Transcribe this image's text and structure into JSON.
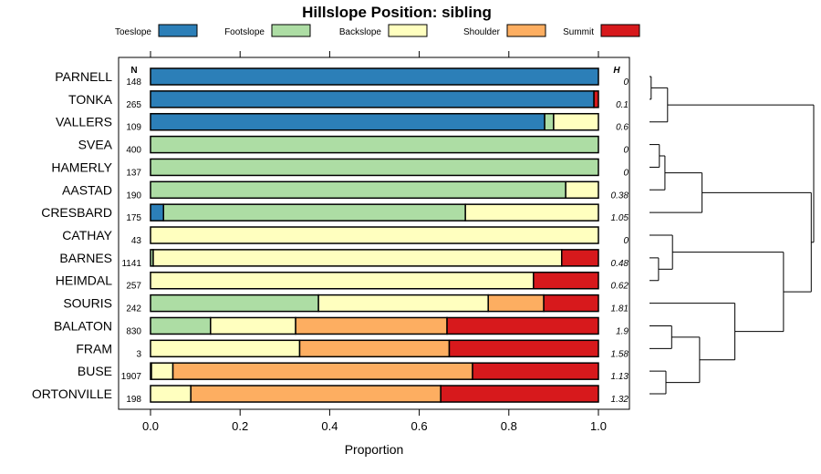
{
  "chart_data": {
    "type": "bar",
    "stacked": true,
    "orientation": "horizontal",
    "title": "Hillslope Position: sibling",
    "xlabel": "Proportion",
    "xlim": [
      0,
      1
    ],
    "xticks": [
      "0.0",
      "0.2",
      "0.4",
      "0.6",
      "0.8",
      "1.0"
    ],
    "n_header": "N",
    "h_header": "H",
    "legend_position": "top",
    "series": [
      {
        "name": "Toeslope",
        "color": "#2C7FB8"
      },
      {
        "name": "Footslope",
        "color": "#ADDDA4"
      },
      {
        "name": "Backslope",
        "color": "#FFFFBF"
      },
      {
        "name": "Shoulder",
        "color": "#FDAE61"
      },
      {
        "name": "Summit",
        "color": "#D7191C"
      }
    ],
    "rows": [
      {
        "label": "PARNELL",
        "n": "148",
        "h": "0",
        "values": [
          1,
          0,
          0,
          0,
          0
        ]
      },
      {
        "label": "TONKA",
        "n": "265",
        "h": "0.1",
        "values": [
          0.99,
          0,
          0,
          0,
          0.01
        ]
      },
      {
        "label": "VALLERS",
        "n": "109",
        "h": "0.6",
        "values": [
          0.88,
          0.02,
          0.1,
          0,
          0
        ]
      },
      {
        "label": "SVEA",
        "n": "400",
        "h": "0",
        "values": [
          0,
          1,
          0,
          0,
          0
        ]
      },
      {
        "label": "HAMERLY",
        "n": "137",
        "h": "0",
        "values": [
          0,
          1,
          0,
          0,
          0
        ]
      },
      {
        "label": "AASTAD",
        "n": "190",
        "h": "0.38",
        "values": [
          0,
          0.927,
          0.073,
          0,
          0
        ]
      },
      {
        "label": "CRESBARD",
        "n": "175",
        "h": "1.05",
        "values": [
          0.029,
          0.674,
          0.297,
          0,
          0
        ]
      },
      {
        "label": "CATHAY",
        "n": "43",
        "h": "0",
        "values": [
          0,
          0,
          1,
          0,
          0
        ]
      },
      {
        "label": "BARNES",
        "n": "1141",
        "h": "0.48",
        "values": [
          0,
          0.006,
          0.912,
          0,
          0.082
        ]
      },
      {
        "label": "HEIMDAL",
        "n": "257",
        "h": "0.62",
        "values": [
          0,
          0,
          0.855,
          0,
          0.145
        ]
      },
      {
        "label": "SOURIS",
        "n": "242",
        "h": "1.81",
        "values": [
          0,
          0.375,
          0.379,
          0.124,
          0.122
        ]
      },
      {
        "label": "BALATON",
        "n": "830",
        "h": "1.9",
        "values": [
          0,
          0.134,
          0.19,
          0.338,
          0.338
        ]
      },
      {
        "label": "FRAM",
        "n": "3",
        "h": "1.58",
        "values": [
          0,
          0,
          0.333,
          0.334,
          0.333
        ]
      },
      {
        "label": "BUSE",
        "n": "1907",
        "h": "1.13",
        "values": [
          0.002,
          0,
          0.048,
          0.669,
          0.281
        ]
      },
      {
        "label": "ORTONVILLE",
        "n": "198",
        "h": "1.32",
        "values": [
          0,
          0,
          0.09,
          0.558,
          0.352
        ]
      }
    ],
    "dendrogram": {
      "h": 1.0,
      "c": [
        {
          "h": 0.11,
          "c": [
            {
              "h": 0.01,
              "c": [
                0,
                1
              ]
            },
            2
          ]
        },
        {
          "h": 0.985,
          "c": [
            {
              "h": 0.32,
              "c": [
                {
                  "h": 0.094,
                  "c": [
                    {
                      "h": 0.06,
                      "c": [
                        3,
                        4
                      ]
                    },
                    5
                  ]
                },
                6
              ]
            },
            {
              "h": 0.816,
              "c": [
                {
                  "h": 0.14,
                  "c": [
                    7,
                    {
                      "h": 0.055,
                      "c": [
                        8,
                        9
                      ]
                    }
                  ]
                },
                {
                  "h": 0.52,
                  "c": [
                    10,
                    {
                      "h": 0.305,
                      "c": [
                        {
                          "h": 0.135,
                          "c": [
                            11,
                            12
                          ]
                        },
                        {
                          "h": 0.1,
                          "c": [
                            13,
                            14
                          ]
                        }
                      ]
                    }
                  ]
                }
              ]
            }
          ]
        }
      ]
    }
  }
}
